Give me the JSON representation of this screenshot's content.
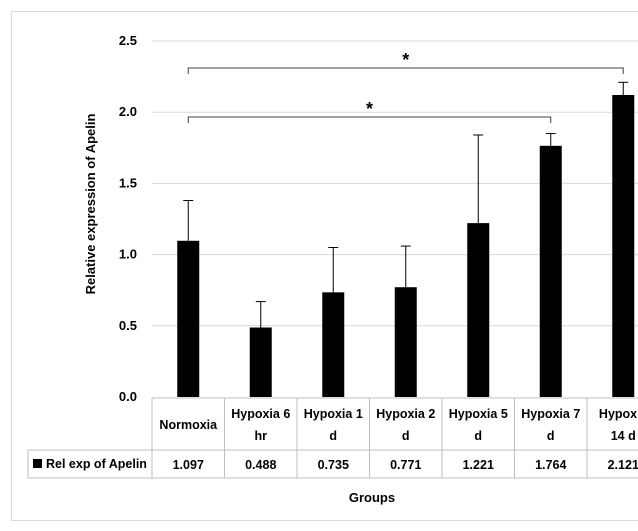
{
  "chart_data": {
    "type": "bar",
    "categories": [
      [
        "Normoxia"
      ],
      [
        "Hypoxia 6",
        "hr"
      ],
      [
        "Hypoxia 1",
        "d"
      ],
      [
        "Hypoxia 2",
        "d"
      ],
      [
        "Hypoxia 5",
        "d"
      ],
      [
        "Hypoxia 7",
        "d"
      ],
      [
        "Hypoxia",
        "14 d"
      ]
    ],
    "series": [
      {
        "name": "Rel exp of Apelin",
        "values": [
          1.097,
          0.488,
          0.735,
          0.771,
          1.221,
          1.764,
          2.121
        ],
        "value_labels": [
          "1.097",
          "0.488",
          "0.735",
          "0.771",
          "1.221",
          "1.764",
          "2.121"
        ],
        "error_upper": [
          1.38,
          0.67,
          1.05,
          1.06,
          1.84,
          1.85,
          2.21
        ],
        "color": "#000000"
      }
    ],
    "ylabel": "Relative expression of Apelin",
    "xlabel": "Groups",
    "ylim": [
      0,
      2.5
    ],
    "yticks": [
      "0.0",
      "0.5",
      "1.0",
      "1.5",
      "2.0",
      "2.5"
    ],
    "grid": "horizontal",
    "data_table": true,
    "annotations": [
      {
        "text": "*",
        "from": "Normoxia",
        "to": "Hypoxia 14 d"
      },
      {
        "text": "*",
        "from": "Normoxia",
        "to": "Hypoxia 7 d"
      }
    ]
  }
}
